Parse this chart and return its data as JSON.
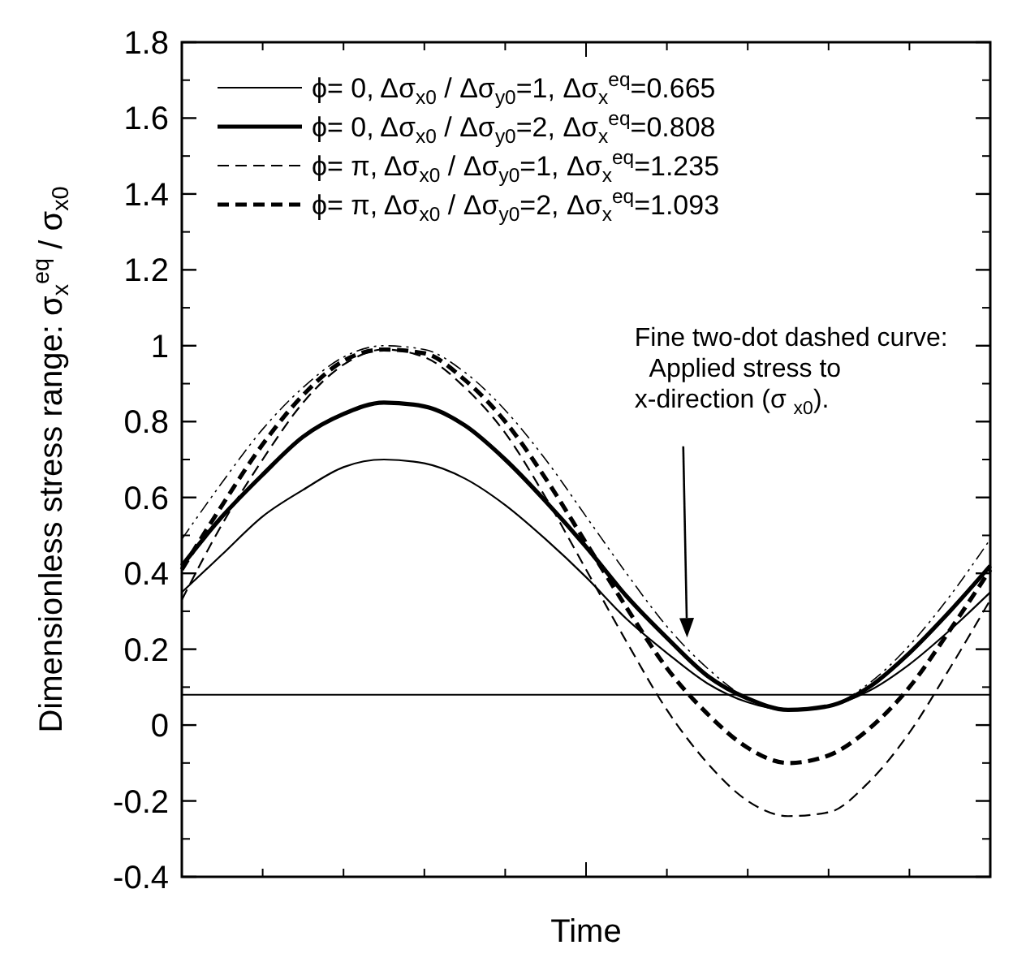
{
  "chart_data": {
    "type": "line",
    "xlabel": "Time",
    "ylabel": "Dimensionless stress range:  σ$_{x}$$^{eq}$ / σ$_{x0}$",
    "categories": [
      null,
      null,
      null,
      null,
      null,
      null,
      null,
      null,
      null,
      null,
      null,
      null,
      null,
      null,
      null,
      null,
      null,
      null,
      null,
      null,
      null
    ],
    "ylim": [
      -0.4,
      1.8
    ],
    "yticks": [
      -0.4,
      -0.2,
      0,
      0.2,
      0.4,
      0.6,
      0.8,
      1,
      1.2,
      1.4,
      1.6,
      1.8
    ],
    "grid": false,
    "legend": "top left",
    "series": [
      {
        "name": "ϕ= 0, Δσ$_{x0}$ / Δσ$_{y0}$=1,  Δσ$_{x}$$^{eq}$=0.665",
        "color": "#000000",
        "line_style": "solid",
        "values": [
          0.35,
          0.45,
          0.55,
          0.62,
          0.68,
          0.7,
          0.69,
          0.65,
          0.58,
          0.49,
          0.39,
          0.28,
          0.19,
          0.11,
          0.06,
          0.04,
          0.05,
          0.09,
          0.16,
          0.25,
          0.35
        ]
      },
      {
        "name": "ϕ= 0, Δσ$_{x0}$ / Δσ$_{y0}$=2,  Δσ$_{x}$$^{eq}$=0.808",
        "color": "#000000",
        "line_style": "solid",
        "values": [
          0.42,
          0.55,
          0.66,
          0.76,
          0.82,
          0.85,
          0.84,
          0.79,
          0.7,
          0.59,
          0.47,
          0.34,
          0.23,
          0.13,
          0.07,
          0.04,
          0.05,
          0.1,
          0.19,
          0.3,
          0.42
        ]
      },
      {
        "name": "ϕ= π, Δσ$_{x0}$ / Δσ$_{y0}$=1,  Δσ$_{x}$$^{eq}$=1.235",
        "color": "#000000",
        "line_style": "dashed",
        "values": [
          0.33,
          0.53,
          0.7,
          0.85,
          0.95,
          0.99,
          0.97,
          0.89,
          0.77,
          0.6,
          0.41,
          0.22,
          0.04,
          -0.1,
          -0.2,
          -0.24,
          -0.23,
          -0.15,
          -0.02,
          0.15,
          0.33
        ]
      },
      {
        "name": "ϕ= π, Δσ$_{x0}$ / Δσ$_{y0}$=2,  Δσ$_{x}$$^{eq}$=1.093",
        "color": "#000000",
        "line_style": "dashed",
        "values": [
          0.41,
          0.58,
          0.74,
          0.87,
          0.96,
          0.99,
          0.98,
          0.91,
          0.8,
          0.65,
          0.48,
          0.31,
          0.15,
          0.03,
          -0.06,
          -0.1,
          -0.08,
          -0.01,
          0.1,
          0.25,
          0.41
        ]
      },
      {
        "color": "#000000",
        "line_style": "dashdotdot",
        "values": [
          0.49,
          0.64,
          0.78,
          0.89,
          0.97,
          1.0,
          0.99,
          0.93,
          0.83,
          0.7,
          0.55,
          0.4,
          0.26,
          0.15,
          0.07,
          0.04,
          0.05,
          0.11,
          0.21,
          0.34,
          0.49
        ]
      }
    ],
    "ref_lines": [
      {
        "axis": "y",
        "value": 0.08,
        "color": "#000000",
        "line_style": "solid"
      }
    ],
    "annotations": [
      "Fine two-dot dashed curve:\n  Applied stress to\nx-direction (σ $_{x0}$)."
    ]
  }
}
